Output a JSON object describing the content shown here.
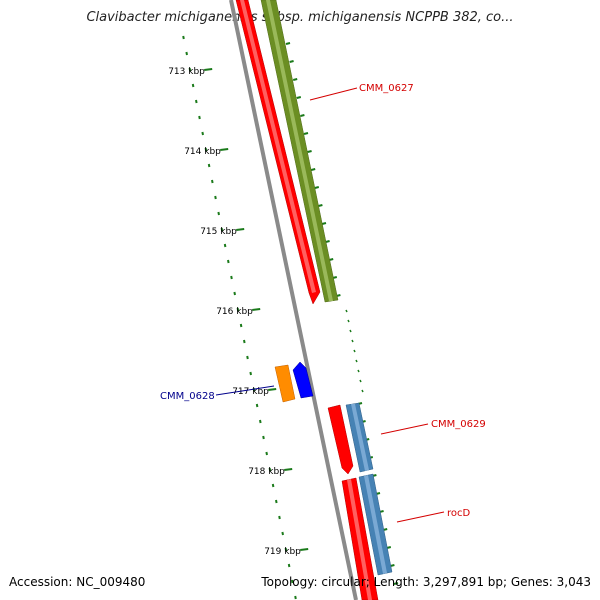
{
  "title": "Clavibacter michiganensis subsp. michiganensis NCPPB 382, co...",
  "footer": {
    "accession": "Accession: NC_009480",
    "stats": "Topology: circular; Length: 3,297,891 bp; Genes: 3,043"
  },
  "colors": {
    "backbone": "#8a8a8a",
    "tick": "#1a7a1a",
    "forward_cds": "#ff0000",
    "feature_green": "#6b8e23",
    "feature_steelblue": "#4682b4",
    "feature_orange": "#ff8c00",
    "feature_blue": "#0000ff",
    "label_red": "#d40000",
    "label_blue": "#00008b"
  },
  "ticks": [
    "713 kbp",
    "714 kbp",
    "715 kbp",
    "716 kbp",
    "717 kbp",
    "718 kbp",
    "719 kbp"
  ],
  "gene_labels": {
    "cmm_0627": "CMM_0627",
    "cmm_0628": "CMM_0628",
    "cmm_0629": "CMM_0629",
    "rocd": "rocD"
  }
}
